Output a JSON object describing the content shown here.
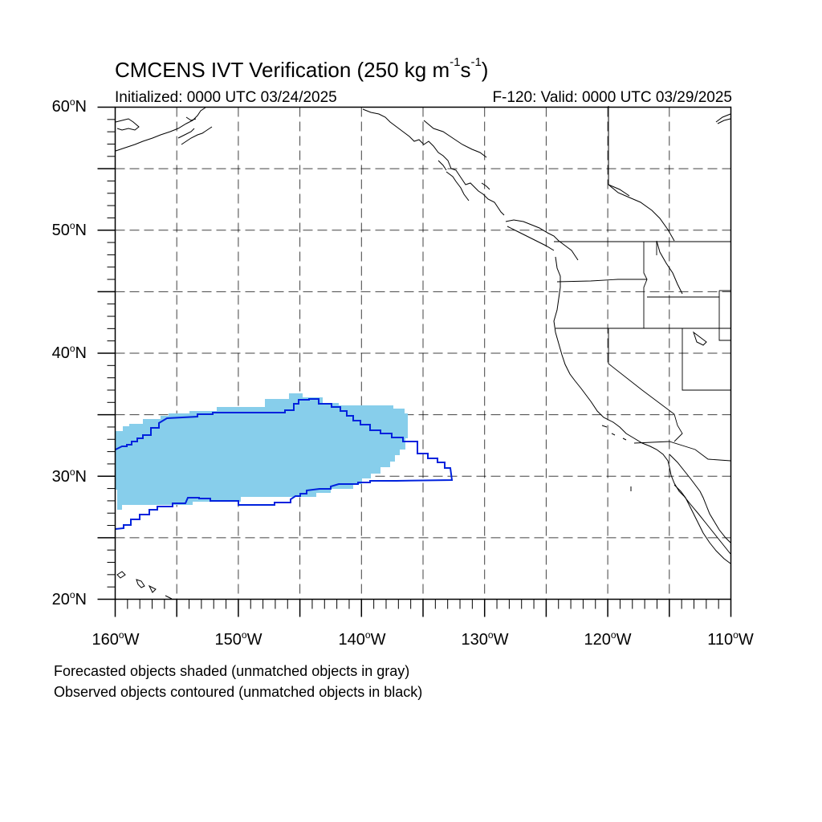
{
  "title_prefix": "CMCENS IVT Verification (250 kg m",
  "title_exp1": "-1",
  "title_s": "s",
  "title_exp2": "-1",
  "title_suffix": ")",
  "initialized": "Initialized: 0000 UTC 03/24/2025",
  "valid": "F-120: Valid: 0000 UTC 03/29/2025",
  "map": {
    "lon_range": [
      -160,
      -110
    ],
    "lat_range": [
      20,
      60
    ],
    "projection": "cylindrical equidistant",
    "gridlines": "dashed, every 5 degrees",
    "lat_labels": [
      {
        "deg": "60",
        "hemi": "N"
      },
      {
        "deg": "50",
        "hemi": "N"
      },
      {
        "deg": "40",
        "hemi": "N"
      },
      {
        "deg": "30",
        "hemi": "N"
      },
      {
        "deg": "20",
        "hemi": "N"
      }
    ],
    "lon_labels": [
      {
        "deg": "160",
        "hemi": "W"
      },
      {
        "deg": "150",
        "hemi": "W"
      },
      {
        "deg": "140",
        "hemi": "W"
      },
      {
        "deg": "130",
        "hemi": "W"
      },
      {
        "deg": "120",
        "hemi": "W"
      },
      {
        "deg": "110",
        "hemi": "W"
      }
    ],
    "forecast_object": {
      "fill_color": "#87CEEB",
      "approx_extent_lon": [
        -160,
        -136.3
      ],
      "approx_extent_lat": [
        27.3,
        36.7
      ]
    },
    "observed_object": {
      "line_color": "#0022DD",
      "approx_extent_lon": [
        -160,
        -132.8
      ],
      "approx_extent_lat": [
        25.8,
        36.3
      ]
    }
  },
  "caption_forecast": "Forecasted objects shaded (unmatched objects in gray)",
  "caption_observed": "Observed objects contoured (unmatched objects in black)"
}
